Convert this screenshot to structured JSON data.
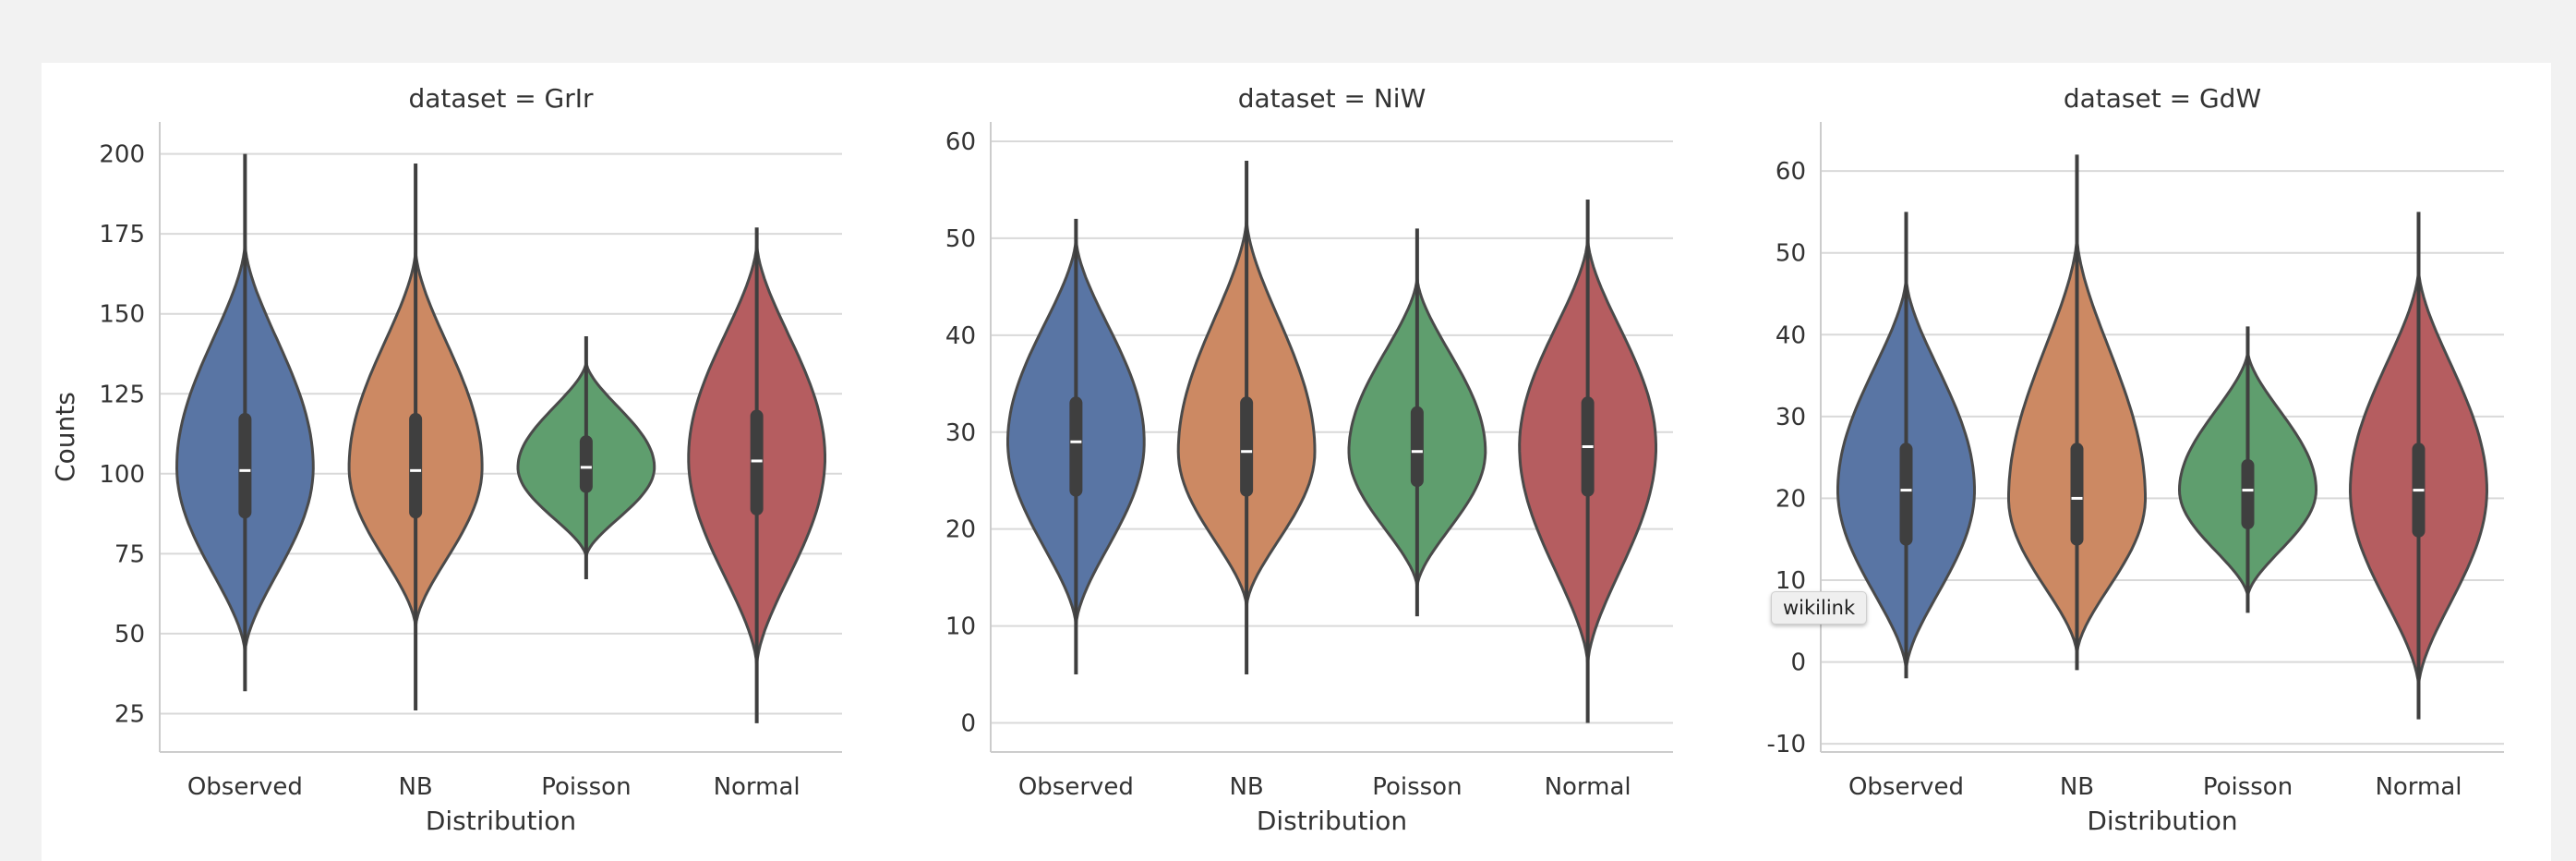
{
  "chart_data": [
    {
      "type": "violin",
      "title": "dataset = GrIr",
      "xlabel": "Distribution",
      "ylabel": "Counts",
      "categories": [
        "Observed",
        "NB",
        "Poisson",
        "Normal"
      ],
      "colors": [
        "#5975a4",
        "#cc8963",
        "#5f9e6e",
        "#b55d60"
      ],
      "yticks": [
        25,
        50,
        75,
        100,
        125,
        150,
        175,
        200
      ],
      "ylim": [
        13,
        210
      ],
      "grid": true,
      "violins": [
        {
          "min": 32,
          "q1": 88,
          "median": 101,
          "q3": 117,
          "max": 200,
          "extent": [
            44,
            172
          ],
          "widest": 102,
          "max_halfwidth": 0.4
        },
        {
          "min": 26,
          "q1": 88,
          "median": 101,
          "q3": 117,
          "max": 197,
          "extent": [
            52,
            170
          ],
          "widest": 102,
          "max_halfwidth": 0.39
        },
        {
          "min": 67,
          "q1": 96,
          "median": 102,
          "q3": 110,
          "max": 143,
          "extent": [
            74,
            135
          ],
          "widest": 102,
          "max_halfwidth": 0.4
        },
        {
          "min": 22,
          "q1": 89,
          "median": 104,
          "q3": 118,
          "max": 177,
          "extent": [
            40,
            172
          ],
          "widest": 105,
          "max_halfwidth": 0.4
        }
      ]
    },
    {
      "type": "violin",
      "title": "dataset = NiW",
      "xlabel": "Distribution",
      "ylabel": "",
      "categories": [
        "Observed",
        "NB",
        "Poisson",
        "Normal"
      ],
      "colors": [
        "#5975a4",
        "#cc8963",
        "#5f9e6e",
        "#b55d60"
      ],
      "yticks": [
        0,
        10,
        20,
        30,
        40,
        50,
        60
      ],
      "ylim": [
        -3,
        62
      ],
      "grid": true,
      "violins": [
        {
          "min": 5,
          "q1": 24,
          "median": 29,
          "q3": 33,
          "max": 52,
          "extent": [
            10,
            50
          ],
          "widest": 29,
          "max_halfwidth": 0.4
        },
        {
          "min": 5,
          "q1": 24,
          "median": 28,
          "q3": 33,
          "max": 58,
          "extent": [
            12,
            52
          ],
          "widest": 28,
          "max_halfwidth": 0.4
        },
        {
          "min": 11,
          "q1": 25,
          "median": 28,
          "q3": 32,
          "max": 51,
          "extent": [
            14,
            46
          ],
          "widest": 28,
          "max_halfwidth": 0.4
        },
        {
          "min": 0,
          "q1": 24,
          "median": 28.5,
          "q3": 33,
          "max": 54,
          "extent": [
            6,
            50
          ],
          "widest": 28.5,
          "max_halfwidth": 0.4
        }
      ]
    },
    {
      "type": "violin",
      "title": "dataset = GdW",
      "xlabel": "Distribution",
      "ylabel": "",
      "categories": [
        "Observed",
        "NB",
        "Poisson",
        "Normal"
      ],
      "colors": [
        "#5975a4",
        "#cc8963",
        "#5f9e6e",
        "#b55d60"
      ],
      "yticks": [
        -10,
        0,
        10,
        20,
        30,
        40,
        50,
        60
      ],
      "ylim": [
        -11,
        66
      ],
      "grid": true,
      "violins": [
        {
          "min": -2,
          "q1": 15,
          "median": 21,
          "q3": 26,
          "max": 55,
          "extent": [
            -1,
            47
          ],
          "widest": 21,
          "max_halfwidth": 0.4
        },
        {
          "min": -1,
          "q1": 15,
          "median": 20,
          "q3": 26,
          "max": 62,
          "extent": [
            1,
            52
          ],
          "widest": 20,
          "max_halfwidth": 0.4
        },
        {
          "min": 6,
          "q1": 17,
          "median": 21,
          "q3": 24,
          "max": 41,
          "extent": [
            8,
            38
          ],
          "widest": 21,
          "max_halfwidth": 0.4
        },
        {
          "min": -7,
          "q1": 16,
          "median": 21,
          "q3": 26,
          "max": 55,
          "extent": [
            -3,
            48
          ],
          "widest": 21,
          "max_halfwidth": 0.4
        }
      ]
    }
  ],
  "tooltip": {
    "text": "wikilink"
  }
}
